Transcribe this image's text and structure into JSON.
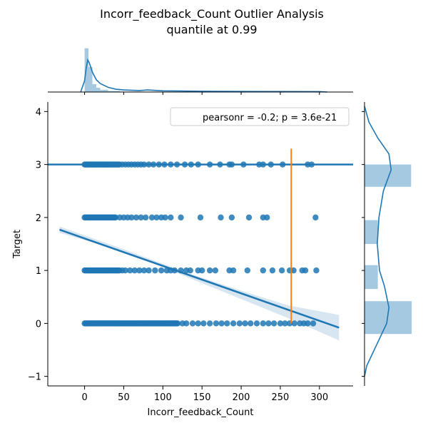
{
  "chart_data": {
    "type": "scatter",
    "title": "Incorr_feedback_Count Outlier Analysis",
    "subtitle": "quantile at 0.99",
    "xlabel": "Incorr_feedback_Count",
    "ylabel": "Target",
    "xlim": [
      -47,
      343
    ],
    "ylim": [
      -1.18,
      4.18
    ],
    "x_ticks": [
      0,
      50,
      100,
      150,
      200,
      250,
      300
    ],
    "y_ticks": [
      -1,
      0,
      1,
      2,
      3,
      4
    ],
    "legend": {
      "text": "pearsonr = -0.2; p = 3.6e-21",
      "position": "upper right"
    },
    "scatter_color": "#1f77b4",
    "series": [
      {
        "y": 3,
        "dense_to": 45,
        "x": [
          48,
          52,
          56,
          60,
          64,
          68,
          72,
          76,
          82,
          88,
          95,
          102,
          110,
          118,
          128,
          136,
          145,
          160,
          173,
          185,
          188,
          203,
          223,
          228,
          238,
          253,
          285,
          290
        ]
      },
      {
        "y": 2,
        "dense_to": 40,
        "x": [
          45,
          50,
          55,
          60,
          66,
          72,
          78,
          86,
          92,
          98,
          103,
          110,
          123,
          148,
          174,
          188,
          210,
          228,
          233,
          295
        ]
      },
      {
        "y": 1,
        "dense_to": 45,
        "x": [
          48,
          52,
          58,
          64,
          70,
          76,
          82,
          90,
          98,
          105,
          110,
          115,
          123,
          130,
          135,
          145,
          150,
          160,
          167,
          185,
          190,
          208,
          228,
          240,
          252,
          262,
          267,
          278,
          282,
          296
        ]
      },
      {
        "y": 0,
        "dense_to": 120,
        "x": [
          125,
          130,
          138,
          145,
          152,
          160,
          168,
          175,
          182,
          190,
          198,
          205,
          212,
          220,
          228,
          235,
          242,
          250,
          256,
          262,
          268,
          275,
          280,
          285,
          292
        ]
      }
    ],
    "fits": [
      {
        "x": [
          -47,
          343
        ],
        "y": [
          3.0,
          3.0
        ]
      },
      {
        "x": [
          -32,
          325
        ],
        "y": [
          1.77,
          -0.08
        ],
        "ci": [
          [
            -32,
            1.71,
            1.83
          ],
          [
            50,
            1.36,
            1.4
          ],
          [
            130,
            0.88,
            0.96
          ],
          [
            200,
            0.46,
            0.62
          ],
          [
            260,
            0.1,
            0.34
          ],
          [
            325,
            -0.32,
            0.16
          ]
        ]
      }
    ],
    "quantile_line": {
      "x": 264,
      "y_range": [
        0,
        3.3
      ],
      "color": "#ff7f0e"
    },
    "x_marginal": {
      "bins": [
        {
          "x0": 0,
          "x1": 5,
          "density": 0.0465
        },
        {
          "x0": 5,
          "x1": 10,
          "density": 0.0267
        },
        {
          "x0": 10,
          "x1": 15,
          "density": 0.0084
        },
        {
          "x0": 15,
          "x1": 20,
          "density": 0.0045
        },
        {
          "x0": 20,
          "x1": 30,
          "density": 0.0024
        },
        {
          "x0": 30,
          "x1": 45,
          "density": 0.0011
        },
        {
          "x0": 45,
          "x1": 70,
          "density": 0.0005
        },
        {
          "x0": 70,
          "x1": 100,
          "density": 0.0004
        },
        {
          "x0": 100,
          "x1": 300,
          "density": 0.0002
        }
      ],
      "kde": [
        [
          -5,
          0
        ],
        [
          0,
          0.012
        ],
        [
          2,
          0.025
        ],
        [
          4,
          0.034
        ],
        [
          6,
          0.031
        ],
        [
          8,
          0.026
        ],
        [
          10,
          0.021
        ],
        [
          15,
          0.013
        ],
        [
          20,
          0.009
        ],
        [
          30,
          0.005
        ],
        [
          40,
          0.003
        ],
        [
          50,
          0.0022
        ],
        [
          70,
          0.0016
        ],
        [
          80,
          0.0022
        ],
        [
          100,
          0.0013
        ],
        [
          150,
          0.0008
        ],
        [
          200,
          0.0006
        ],
        [
          250,
          0.0005
        ],
        [
          300,
          0.0004
        ],
        [
          310,
          0
        ]
      ],
      "ymax": 0.05
    },
    "y_marginal": {
      "bins": [
        {
          "y0": -0.2,
          "y1": 0.42,
          "density": 0.85
        },
        {
          "y0": 0.65,
          "y1": 1.1,
          "density": 0.24
        },
        {
          "y0": 1.5,
          "y1": 1.95,
          "density": 0.24
        },
        {
          "y0": 2.58,
          "y1": 3.0,
          "density": 0.84
        }
      ],
      "kde": [
        [
          -1,
          0.0
        ],
        [
          -0.8,
          0.04
        ],
        [
          -0.4,
          0.22
        ],
        [
          0,
          0.4
        ],
        [
          0.3,
          0.44
        ],
        [
          0.7,
          0.36
        ],
        [
          1.0,
          0.27
        ],
        [
          1.5,
          0.23
        ],
        [
          2.0,
          0.26
        ],
        [
          2.5,
          0.34
        ],
        [
          2.9,
          0.48
        ],
        [
          3.2,
          0.44
        ],
        [
          3.5,
          0.24
        ],
        [
          3.8,
          0.08
        ],
        [
          4.1,
          0.0
        ]
      ],
      "xmax": 0.9
    }
  }
}
